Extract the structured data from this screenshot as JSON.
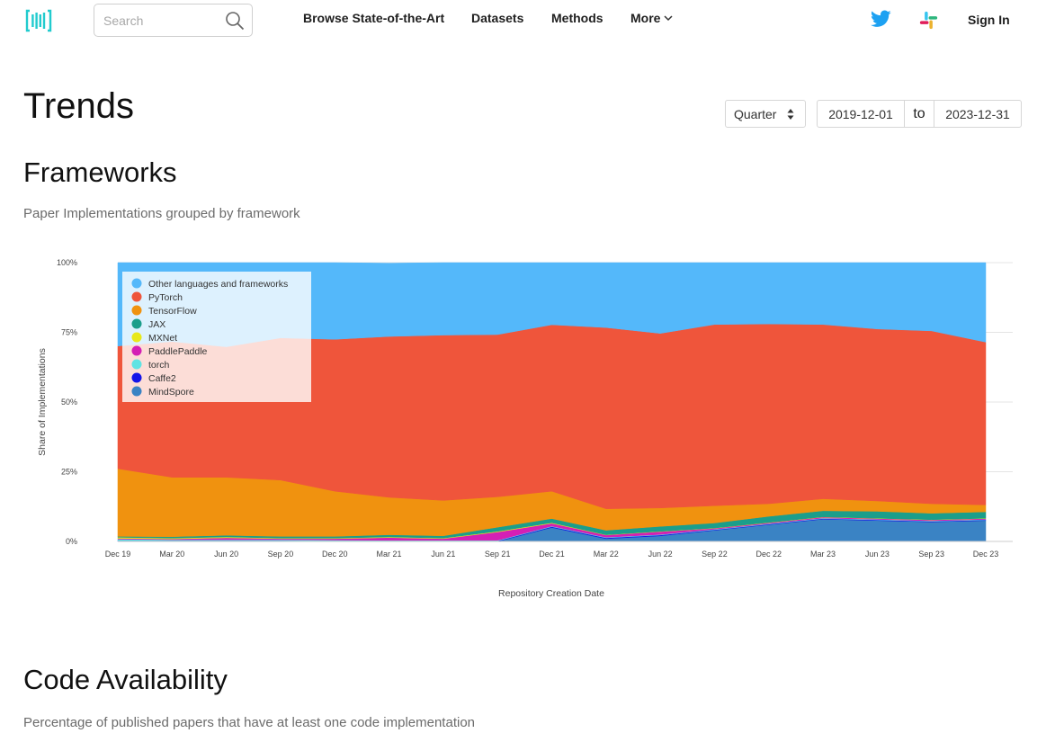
{
  "nav": {
    "search_placeholder": "Search",
    "links": [
      "Browse State-of-the-Art",
      "Datasets",
      "Methods"
    ],
    "more": "More",
    "sign_in": "Sign In"
  },
  "header": {
    "title": "Trends",
    "period": "Quarter",
    "date_from": "2019-12-01",
    "date_to_label": "to",
    "date_to": "2023-12-31"
  },
  "frameworks": {
    "title": "Frameworks",
    "subtitle": "Paper Implementations grouped by framework"
  },
  "code_availability": {
    "title": "Code Availability",
    "subtitle": "Percentage of published papers that have at least one code implementation"
  },
  "chart_data": {
    "type": "area",
    "stacked": "percent",
    "xlabel": "Repository Creation Date",
    "ylabel": "Share of Implementations",
    "yticks": [
      "0%",
      "25%",
      "50%",
      "75%",
      "100%"
    ],
    "ylim": [
      0,
      100
    ],
    "grid": true,
    "legend_position": "top-left",
    "categories": [
      "Dec 19",
      "Mar 20",
      "Jun 20",
      "Sep 20",
      "Dec 20",
      "Mar 21",
      "Jun 21",
      "Sep 21",
      "Dec 21",
      "Mar 22",
      "Jun 22",
      "Sep 22",
      "Dec 22",
      "Mar 23",
      "Jun 23",
      "Sep 23",
      "Dec 23"
    ],
    "series": [
      {
        "name": "MindSpore",
        "color": "#3a83c4",
        "values": [
          0,
          0,
          0,
          0,
          0,
          0,
          0,
          0,
          5,
          1,
          2,
          4,
          6,
          8,
          7.5,
          7,
          7.5
        ]
      },
      {
        "name": "Caffe2",
        "color": "#1414e8",
        "values": [
          0.3,
          0.3,
          0.3,
          0.3,
          0.2,
          0.2,
          0.2,
          0.2,
          0.3,
          0.3,
          0.3,
          0.2,
          0.2,
          0.2,
          0.2,
          0.2,
          0.2
        ]
      },
      {
        "name": "torch",
        "color": "#5fe3e3",
        "values": [
          0.5,
          0.3,
          0.3,
          0.3,
          0.3,
          0.2,
          0.2,
          0.2,
          0.2,
          0.2,
          0.2,
          0.2,
          0.2,
          0.2,
          0.2,
          0.2,
          0.2
        ]
      },
      {
        "name": "PaddlePaddle",
        "color": "#d41fb5",
        "values": [
          0.3,
          0.3,
          0.7,
          0.4,
          0.5,
          1,
          0.6,
          3,
          1,
          0.8,
          1,
          0.3,
          0.3,
          0.3,
          0.3,
          0.3,
          0.3
        ]
      },
      {
        "name": "MXNet",
        "color": "#e8e81a",
        "values": [
          0.4,
          0.3,
          0.3,
          0.2,
          0.2,
          0.2,
          0.2,
          0.2,
          0.2,
          0.1,
          0.1,
          0.1,
          0.1,
          0.1,
          0.1,
          0.1,
          0.1
        ]
      },
      {
        "name": "JAX",
        "color": "#1b9e8b",
        "values": [
          0.3,
          0.5,
          0.6,
          0.6,
          0.6,
          0.8,
          0.8,
          1.5,
          1.5,
          1.6,
          1.8,
          1.8,
          2.2,
          2.2,
          2.5,
          2.3,
          2.3
        ]
      },
      {
        "name": "TensorFlow",
        "color": "#f0920f",
        "values": [
          24.3,
          21.3,
          20.8,
          20.2,
          16.2,
          13.4,
          12.7,
          10.9,
          9.8,
          7.7,
          6.6,
          6.2,
          4.5,
          4.3,
          3.7,
          3.4,
          2.5
        ]
      },
      {
        "name": "PyTorch",
        "color": "#ef553b",
        "values": [
          44,
          48.7,
          46.8,
          51,
          54.5,
          57.7,
          59.3,
          58.2,
          59.7,
          65,
          62.6,
          65,
          64.5,
          62.5,
          61.7,
          62,
          58.4
        ]
      },
      {
        "name": "Other languages and frameworks",
        "color": "#54b8fa",
        "values": [
          30,
          28.3,
          30.2,
          27,
          27.5,
          26.3,
          26,
          25.8,
          22.3,
          23.3,
          25.4,
          22.2,
          22,
          22.2,
          23.8,
          24.5,
          28.5
        ]
      }
    ],
    "legend_order": [
      "Other languages and frameworks",
      "PyTorch",
      "TensorFlow",
      "JAX",
      "MXNet",
      "PaddlePaddle",
      "torch",
      "Caffe2",
      "MindSpore"
    ]
  }
}
